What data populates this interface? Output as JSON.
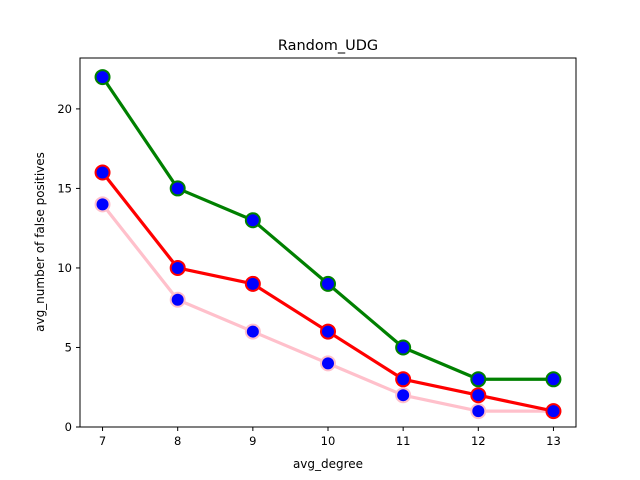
{
  "chart_data": {
    "type": "line",
    "title": "Random_UDG",
    "xlabel": "avg_degree",
    "ylabel": "avg_number of false positives",
    "x": [
      7,
      8,
      9,
      10,
      11,
      12,
      13
    ],
    "xlim": [
      6.7,
      13.3
    ],
    "ylim": [
      0,
      23.2
    ],
    "xticks": [
      "7",
      "8",
      "9",
      "10",
      "11",
      "12",
      "13"
    ],
    "yticks": [
      "0",
      "5",
      "10",
      "15",
      "20"
    ],
    "grid": false,
    "marker_color": "#0000ff",
    "series": [
      {
        "color": "#008000",
        "values": [
          22,
          15,
          13,
          9,
          5,
          3,
          3
        ]
      },
      {
        "color": "#ff0000",
        "values": [
          16,
          10,
          9,
          6,
          3,
          2,
          1
        ]
      },
      {
        "color": "#ffc0cb",
        "values": [
          14,
          8,
          6,
          4,
          2,
          1,
          1
        ]
      }
    ]
  }
}
